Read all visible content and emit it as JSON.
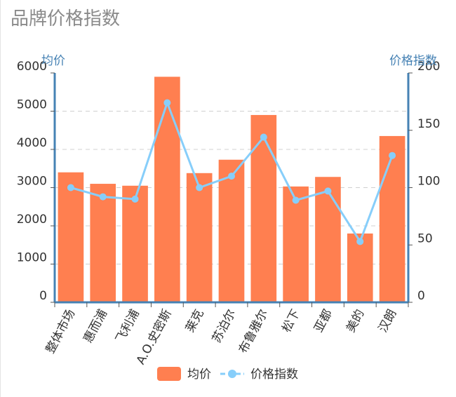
{
  "chart_data": {
    "type": "bar+line",
    "title": "品牌价格指数",
    "categories": [
      "整体市场",
      "惠而浦",
      "飞利浦",
      "A.O.史密斯",
      "莱克",
      "苏泊尔",
      "布鲁雅尔",
      "松下",
      "亚都",
      "美的",
      "汉朗"
    ],
    "series": [
      {
        "name": "均价",
        "type": "bar",
        "axis": "left",
        "color": "#ff7f50",
        "values": [
          3400,
          3100,
          3050,
          5900,
          3380,
          3730,
          4900,
          3030,
          3280,
          1800,
          4350
        ]
      },
      {
        "name": "价格指数",
        "type": "line",
        "axis": "right",
        "color": "#87cefa",
        "values": [
          100,
          92,
          90,
          174,
          100,
          110,
          144,
          89,
          97,
          53,
          128
        ]
      }
    ],
    "y_left": {
      "label": "均价",
      "ylim": [
        0,
        6000
      ],
      "ticks": [
        "0",
        "1000",
        "2000",
        "3000",
        "4000",
        "5000",
        "6000"
      ]
    },
    "y_right": {
      "label": "价格指数",
      "ylim": [
        0,
        200
      ],
      "ticks": [
        "0",
        "50",
        "100",
        "150",
        "200"
      ]
    },
    "grid": true,
    "legend": [
      "均价",
      "价格指数"
    ],
    "legend_position": "bottom-center",
    "axis_color": "#4682b4"
  }
}
